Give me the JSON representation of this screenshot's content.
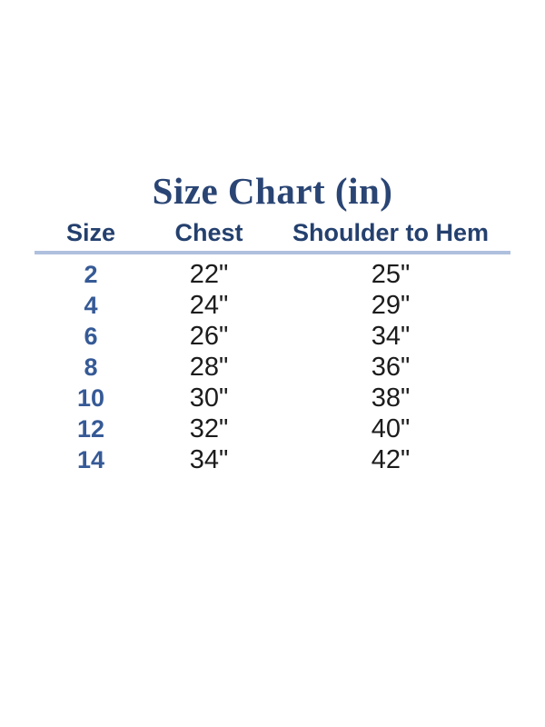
{
  "title": "Size Chart (in)",
  "table": {
    "columns": [
      "Size",
      "Chest",
      "Shoulder to Hem"
    ],
    "rows": [
      {
        "size": "2",
        "chest": "22\"",
        "shoulder_to_hem": "25\""
      },
      {
        "size": "4",
        "chest": "24\"",
        "shoulder_to_hem": "29\""
      },
      {
        "size": "6",
        "chest": "26\"",
        "shoulder_to_hem": "34\""
      },
      {
        "size": "8",
        "chest": "28\"",
        "shoulder_to_hem": "36\""
      },
      {
        "size": "10",
        "chest": "30\"",
        "shoulder_to_hem": "38\""
      },
      {
        "size": "12",
        "chest": "32\"",
        "shoulder_to_hem": "40\""
      },
      {
        "size": "14",
        "chest": "34\"",
        "shoulder_to_hem": "42\""
      }
    ]
  },
  "colors": {
    "background": "#ffffff",
    "title": "#2a4574",
    "header": "#24406e",
    "size_value": "#365a96",
    "measurement": "#1c1c1c",
    "divider": "#aec0de"
  }
}
